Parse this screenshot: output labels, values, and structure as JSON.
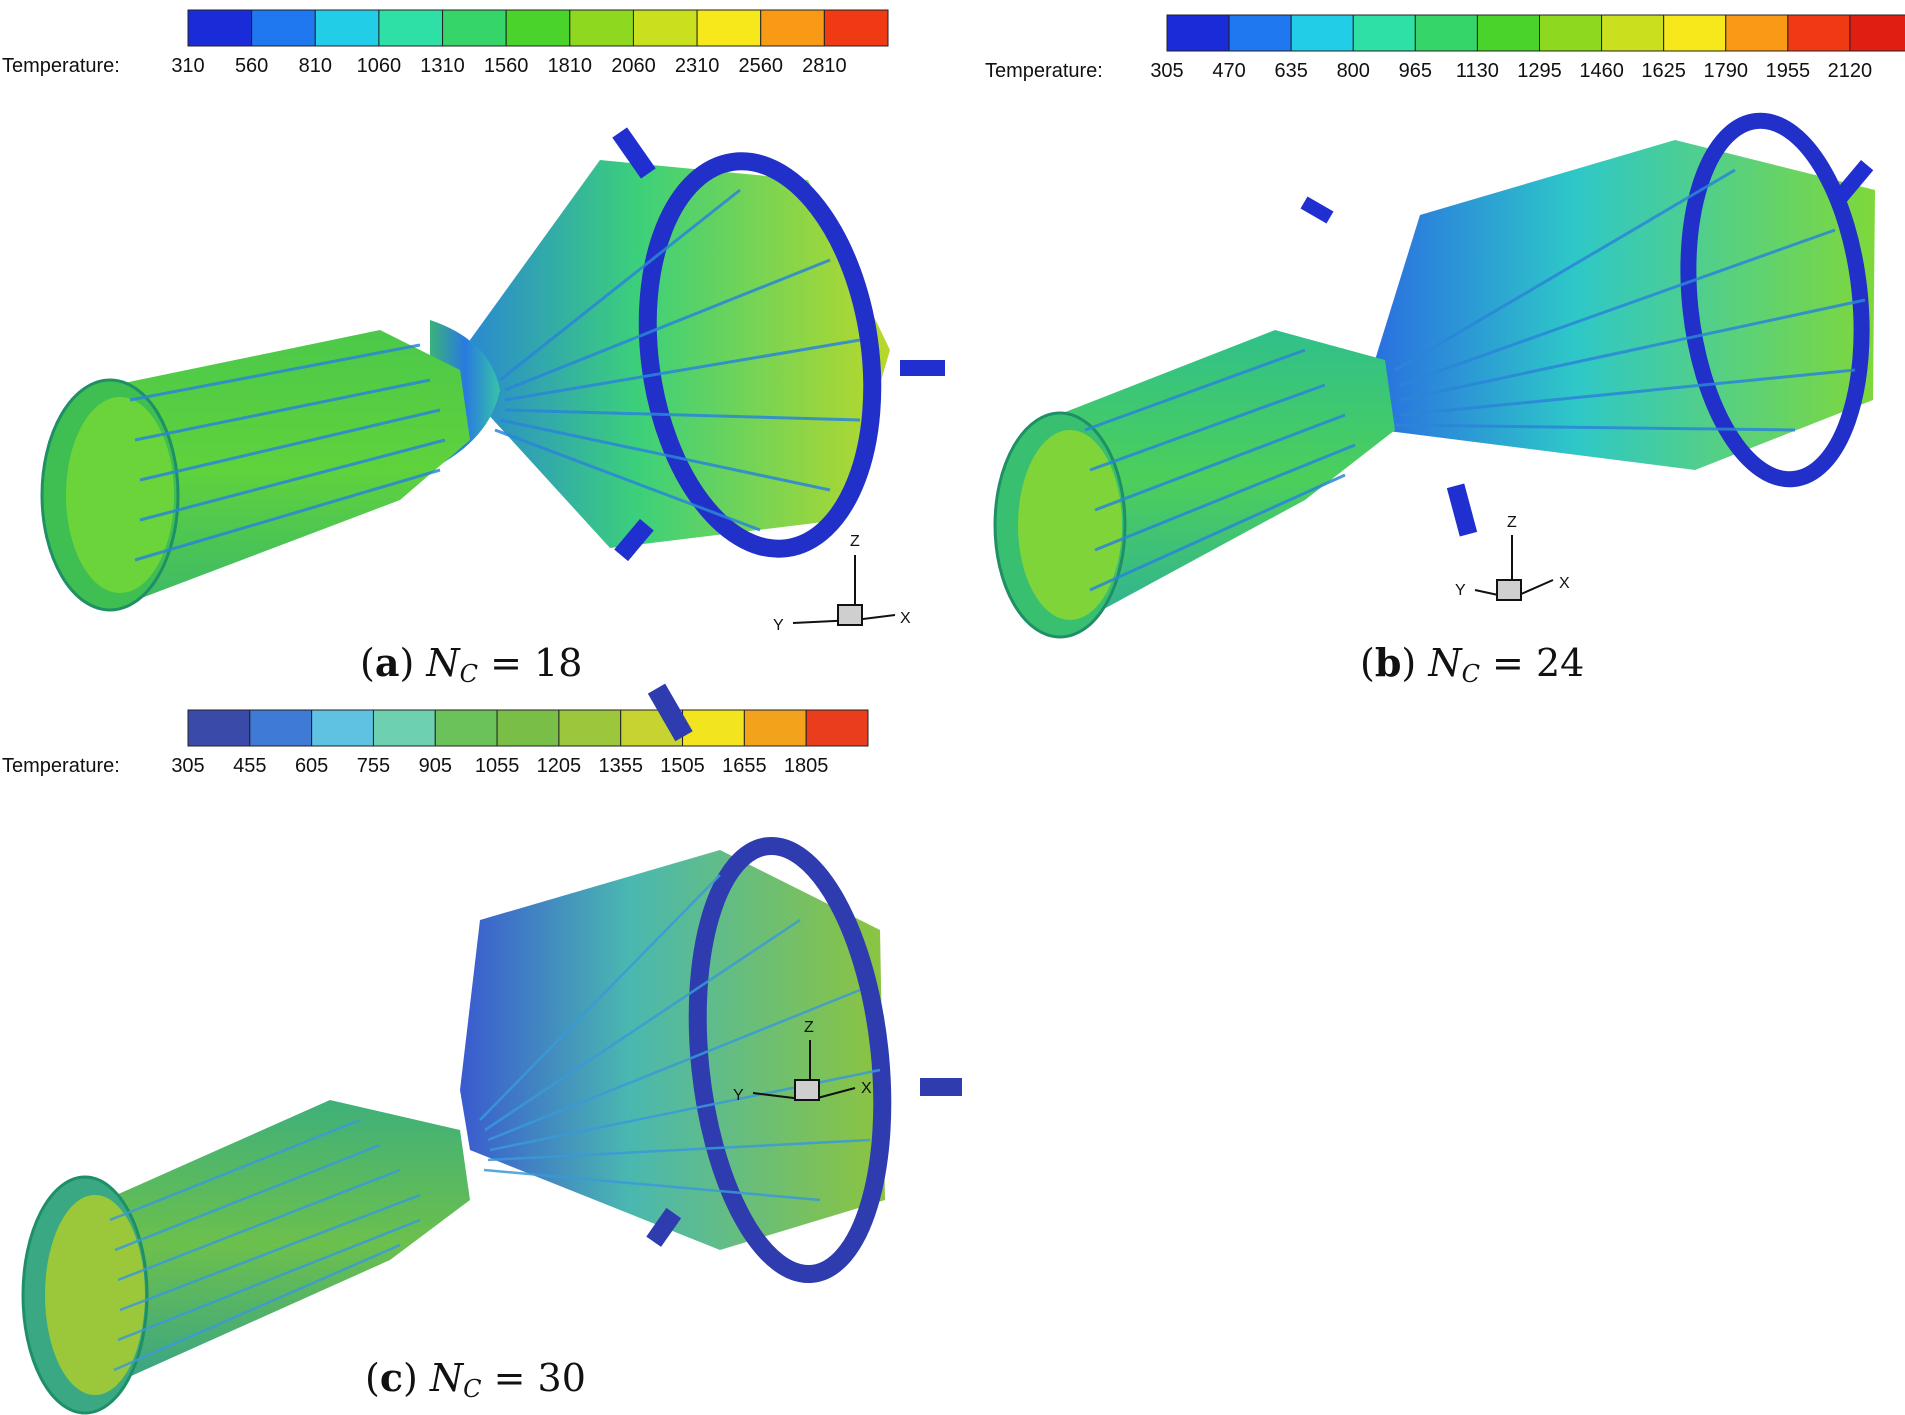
{
  "panels": [
    {
      "id": "a",
      "caption": {
        "tag": "a",
        "symbol": "N",
        "subscript": "C",
        "equals": "=",
        "value": "18"
      },
      "colorbar": {
        "label": "Temperature:",
        "ticks": [
          "310",
          "560",
          "810",
          "1060",
          "1310",
          "1560",
          "1810",
          "2060",
          "2310",
          "2560",
          "2810"
        ],
        "colors": [
          "#1a2bd8",
          "#1f78f0",
          "#22cde8",
          "#2fe0a6",
          "#35d56a",
          "#4ad32a",
          "#8fd820",
          "#c8e01e",
          "#f6e81b",
          "#f89a16",
          "#f03a14"
        ]
      },
      "axes": {
        "x": "X",
        "y": "Y",
        "z": "Z"
      }
    },
    {
      "id": "b",
      "caption": {
        "tag": "b",
        "symbol": "N",
        "subscript": "C",
        "equals": "=",
        "value": "24"
      },
      "colorbar": {
        "label": "Temperature:",
        "ticks": [
          "305",
          "470",
          "635",
          "800",
          "965",
          "1130",
          "1295",
          "1460",
          "1625",
          "1790",
          "1955",
          "2120"
        ],
        "colors": [
          "#1a2bd8",
          "#1f78f0",
          "#22cde8",
          "#2fe0a6",
          "#35d56a",
          "#4ad32a",
          "#8fd820",
          "#c8e01e",
          "#f6e81b",
          "#f89a16",
          "#f03a14",
          "#e01f12"
        ]
      },
      "axes": {
        "x": "X",
        "y": "Y",
        "z": "Z"
      }
    },
    {
      "id": "c",
      "caption": {
        "tag": "c",
        "symbol": "N",
        "subscript": "C",
        "equals": "=",
        "value": "30"
      },
      "colorbar": {
        "label": "Temperature:",
        "ticks": [
          "305",
          "455",
          "605",
          "755",
          "905",
          "1055",
          "1205",
          "1355",
          "1505",
          "1655",
          "1805"
        ],
        "colors": [
          "#3a4aa8",
          "#3f7ad6",
          "#5fc2e2",
          "#6dd0b0",
          "#6cc25a",
          "#79bf47",
          "#9cc73c",
          "#c7d330",
          "#f2e41e",
          "#f3a21c",
          "#ea3d1e"
        ]
      },
      "axes": {
        "x": "X",
        "y": "Y",
        "z": "Z"
      }
    }
  ]
}
